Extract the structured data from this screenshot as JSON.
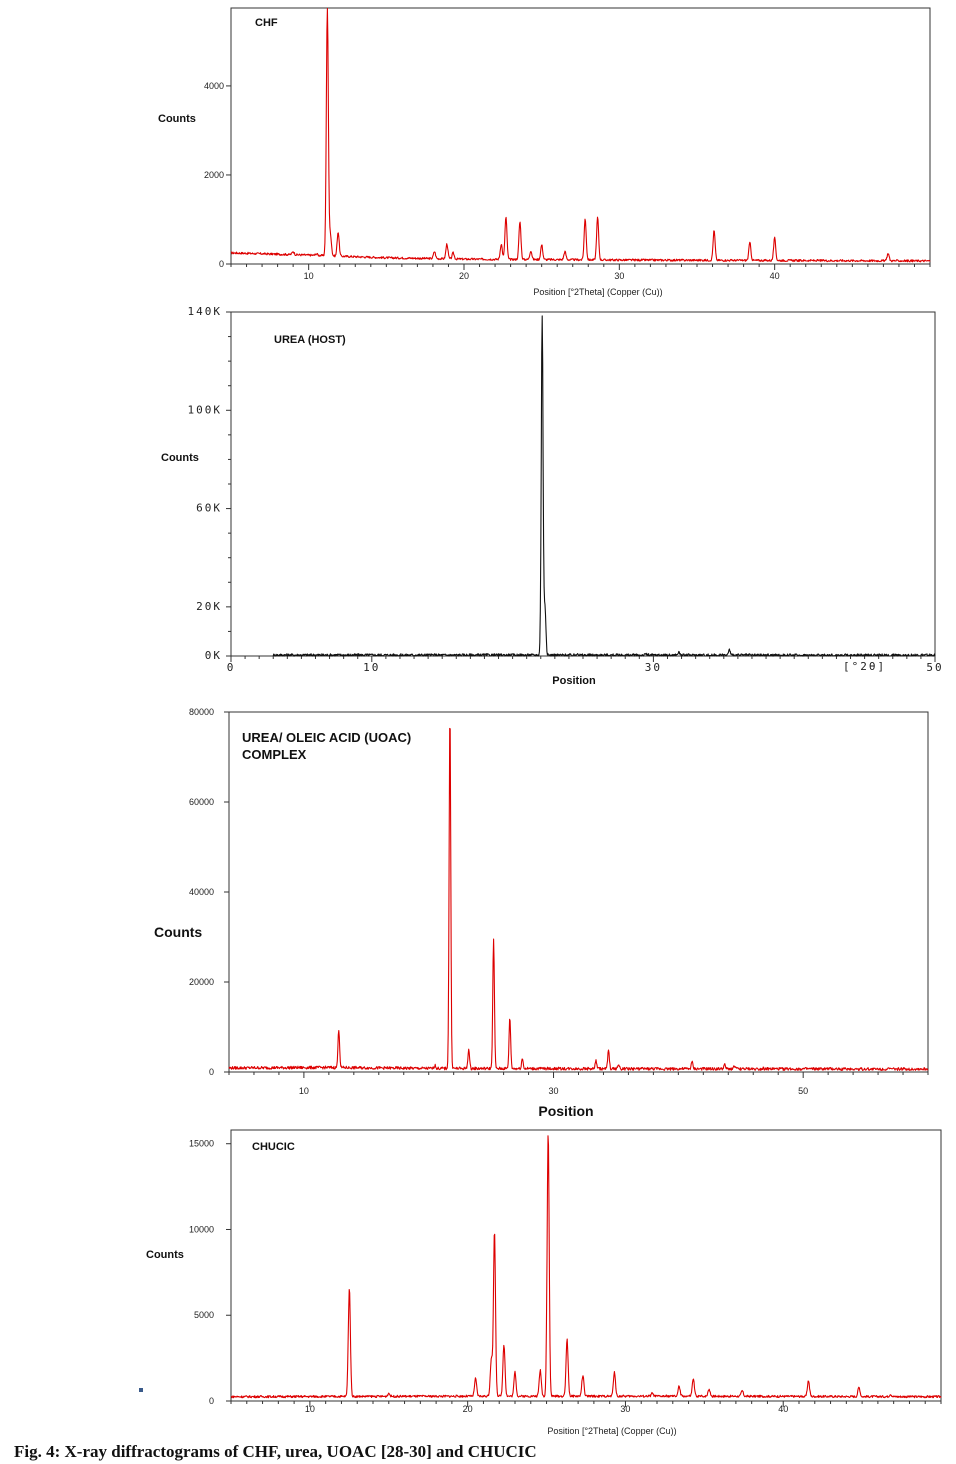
{
  "caption": "Fig. 4: X-ray diffractograms of CHF, urea, UOAC [28-30] and CHUCIC",
  "chart_data": [
    {
      "type": "line",
      "title": "CHF",
      "ylabel": "Counts",
      "xlabel": "Position [°2Theta] (Copper (Cu))",
      "color": "#dd0000",
      "xlim": [
        5,
        50
      ],
      "ylim": [
        0,
        5750
      ],
      "x_ticks": [
        10,
        20,
        30,
        40
      ],
      "y_ticks": [
        0,
        2000,
        4000
      ],
      "y_tick_labels": [
        "0",
        "2000",
        "4000"
      ],
      "baseline": [
        [
          5,
          250
        ],
        [
          10,
          200
        ],
        [
          15,
          140
        ],
        [
          20,
          110
        ],
        [
          30,
          90
        ],
        [
          40,
          80
        ],
        [
          50,
          70
        ]
      ],
      "peaks": [
        {
          "x": 9.0,
          "y": 280
        },
        {
          "x": 10.5,
          "y": 230
        },
        {
          "x": 11.2,
          "y": 5750
        },
        {
          "x": 11.4,
          "y": 650
        },
        {
          "x": 11.9,
          "y": 720
        },
        {
          "x": 18.1,
          "y": 280
        },
        {
          "x": 18.9,
          "y": 450
        },
        {
          "x": 19.3,
          "y": 250
        },
        {
          "x": 22.4,
          "y": 450
        },
        {
          "x": 22.7,
          "y": 1050
        },
        {
          "x": 23.6,
          "y": 950
        },
        {
          "x": 24.3,
          "y": 300
        },
        {
          "x": 25.0,
          "y": 430
        },
        {
          "x": 26.5,
          "y": 280
        },
        {
          "x": 27.8,
          "y": 1020
        },
        {
          "x": 28.6,
          "y": 1050
        },
        {
          "x": 36.1,
          "y": 750
        },
        {
          "x": 38.4,
          "y": 480
        },
        {
          "x": 40.0,
          "y": 580
        },
        {
          "x": 47.3,
          "y": 240
        }
      ]
    },
    {
      "type": "line",
      "title": "UREA (HOST)",
      "ylabel": "Counts",
      "xlabel": "Position",
      "unit_label": "[°2θ]",
      "color": "#111111",
      "xlim": [
        0,
        50
      ],
      "ylim": [
        0,
        140000
      ],
      "x_ticks": [
        0,
        10,
        30,
        50
      ],
      "y_ticks": [
        0,
        20000,
        60000,
        100000,
        140000
      ],
      "y_tick_labels": [
        "0K",
        "20K",
        "60K",
        "100K",
        "140K"
      ],
      "baseline": [
        [
          3,
          400
        ],
        [
          50,
          300
        ]
      ],
      "peaks": [
        {
          "x": 22.1,
          "y": 138000
        },
        {
          "x": 22.3,
          "y": 20000
        },
        {
          "x": 24.6,
          "y": 1200
        },
        {
          "x": 29.5,
          "y": 800
        },
        {
          "x": 31.8,
          "y": 1500
        },
        {
          "x": 35.4,
          "y": 2500
        },
        {
          "x": 45.5,
          "y": 500
        }
      ]
    },
    {
      "type": "line",
      "title": "UREA/ OLEIC ACID (UOAC)\nCOMPLEX",
      "ylabel": "Counts",
      "xlabel": "Position",
      "color": "#dd0000",
      "xlim": [
        4,
        60
      ],
      "ylim": [
        0,
        80000
      ],
      "x_ticks": [
        10,
        30,
        50
      ],
      "y_ticks": [
        0,
        20000,
        40000,
        60000,
        80000
      ],
      "y_tick_labels": [
        "0",
        "20000",
        "40000",
        "60000",
        "80000"
      ],
      "baseline": [
        [
          4,
          900
        ],
        [
          12,
          1000
        ],
        [
          20,
          800
        ],
        [
          40,
          700
        ],
        [
          60,
          650
        ]
      ],
      "peaks": [
        {
          "x": 12.8,
          "y": 9500
        },
        {
          "x": 20.5,
          "y": 1500
        },
        {
          "x": 21.7,
          "y": 80000
        },
        {
          "x": 23.2,
          "y": 5000
        },
        {
          "x": 25.2,
          "y": 29500
        },
        {
          "x": 26.5,
          "y": 12000
        },
        {
          "x": 27.5,
          "y": 3000
        },
        {
          "x": 33.4,
          "y": 2500
        },
        {
          "x": 34.4,
          "y": 4800
        },
        {
          "x": 35.2,
          "y": 1600
        },
        {
          "x": 41.1,
          "y": 2200
        },
        {
          "x": 43.7,
          "y": 1600
        },
        {
          "x": 44.5,
          "y": 1400
        },
        {
          "x": 46.8,
          "y": 900
        }
      ]
    },
    {
      "type": "line",
      "title": "CHUCIC",
      "ylabel": "Counts",
      "xlabel": "Position [°2Theta] (Copper (Cu))",
      "color": "#dd0000",
      "xlim": [
        5,
        50
      ],
      "ylim": [
        0,
        15800
      ],
      "x_ticks": [
        10,
        20,
        30,
        40
      ],
      "y_ticks": [
        0,
        5000,
        10000,
        15000
      ],
      "y_tick_labels": [
        "0",
        "5000",
        "10000",
        "15000"
      ],
      "baseline": [
        [
          5,
          250
        ],
        [
          20,
          280
        ],
        [
          35,
          280
        ],
        [
          50,
          250
        ]
      ],
      "peaks": [
        {
          "x": 12.5,
          "y": 6600
        },
        {
          "x": 15.0,
          "y": 450
        },
        {
          "x": 20.5,
          "y": 1300
        },
        {
          "x": 21.5,
          "y": 2500
        },
        {
          "x": 21.7,
          "y": 9900
        },
        {
          "x": 22.3,
          "y": 3300
        },
        {
          "x": 23.0,
          "y": 1700
        },
        {
          "x": 24.6,
          "y": 1800
        },
        {
          "x": 25.1,
          "y": 15700
        },
        {
          "x": 26.3,
          "y": 3600
        },
        {
          "x": 27.3,
          "y": 1500
        },
        {
          "x": 29.3,
          "y": 1700
        },
        {
          "x": 31.7,
          "y": 450
        },
        {
          "x": 33.4,
          "y": 850
        },
        {
          "x": 34.3,
          "y": 1300
        },
        {
          "x": 35.3,
          "y": 700
        },
        {
          "x": 37.4,
          "y": 600
        },
        {
          "x": 41.6,
          "y": 1200
        },
        {
          "x": 44.8,
          "y": 800
        },
        {
          "x": 46.8,
          "y": 400
        }
      ]
    }
  ]
}
